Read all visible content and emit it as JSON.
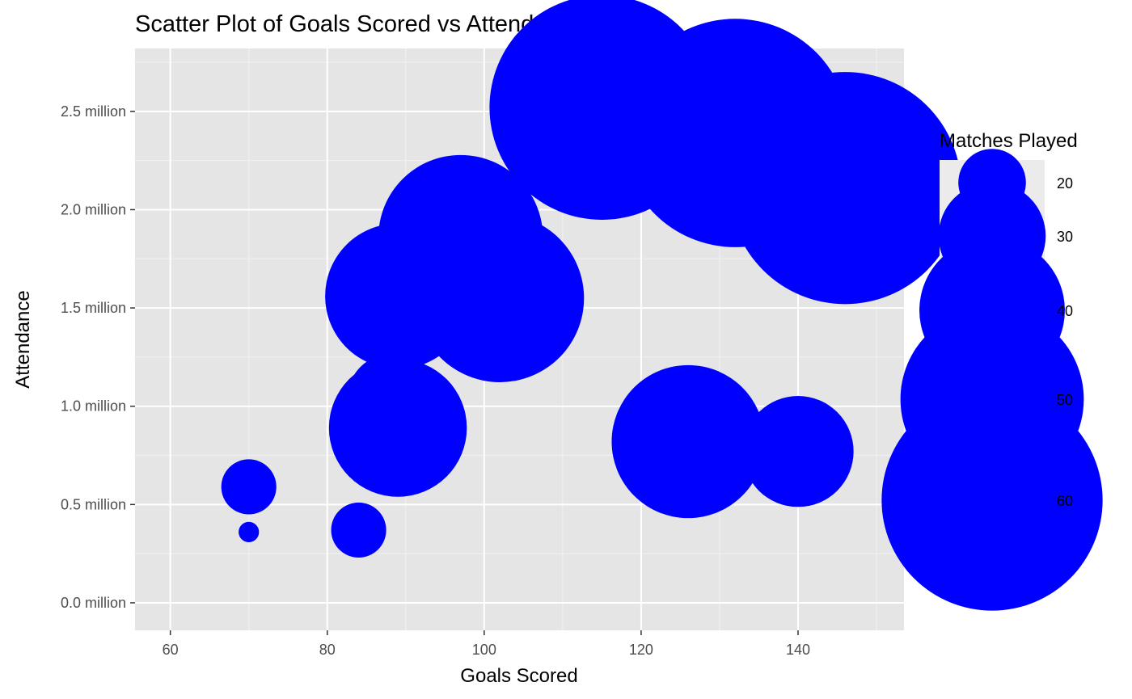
{
  "chart_data": {
    "type": "scatter",
    "title": "Scatter Plot of Goals Scored vs Attendance",
    "xlabel": "Goals Scored",
    "ylabel": "Attendance",
    "xlim": [
      55.5,
      153.5
    ],
    "ylim": [
      -0.14,
      2.82
    ],
    "x_ticks": [
      60,
      80,
      100,
      120,
      140
    ],
    "x_tick_labels": [
      "60",
      "80",
      "100",
      "120",
      "140"
    ],
    "y_ticks": [
      0.0,
      0.5,
      1.0,
      1.5,
      2.0,
      2.5
    ],
    "y_tick_labels": [
      "0.0 million",
      "0.5 million",
      "1.0 million",
      "1.5 million",
      "2.0 million",
      "2.5 million"
    ],
    "y_unit": "million",
    "grid": true,
    "point_color": "#0000ff",
    "panel_background": "#e5e5e5",
    "size_legend": {
      "title": "Matches Played",
      "position": "right",
      "values": [
        20,
        30,
        40,
        50,
        60
      ],
      "labels": [
        "20",
        "30",
        "40",
        "50",
        "60"
      ]
    },
    "points": [
      {
        "x": 115,
        "y": 2.52,
        "size": 61
      },
      {
        "x": 132,
        "y": 2.39,
        "size": 62
      },
      {
        "x": 146,
        "y": 2.11,
        "size": 63
      },
      {
        "x": 97,
        "y": 1.86,
        "size": 45
      },
      {
        "x": 89,
        "y": 1.56,
        "size": 40
      },
      {
        "x": 95,
        "y": 1.61,
        "size": 38
      },
      {
        "x": 102,
        "y": 1.55,
        "size": 46
      },
      {
        "x": 88,
        "y": 1.05,
        "size": 24
      },
      {
        "x": 89,
        "y": 0.89,
        "size": 38
      },
      {
        "x": 126,
        "y": 0.82,
        "size": 42
      },
      {
        "x": 140,
        "y": 0.77,
        "size": 31
      },
      {
        "x": 70,
        "y": 0.59,
        "size": 17
      },
      {
        "x": 70,
        "y": 0.36,
        "size": 10
      },
      {
        "x": 84,
        "y": 0.37,
        "size": 17
      }
    ]
  }
}
